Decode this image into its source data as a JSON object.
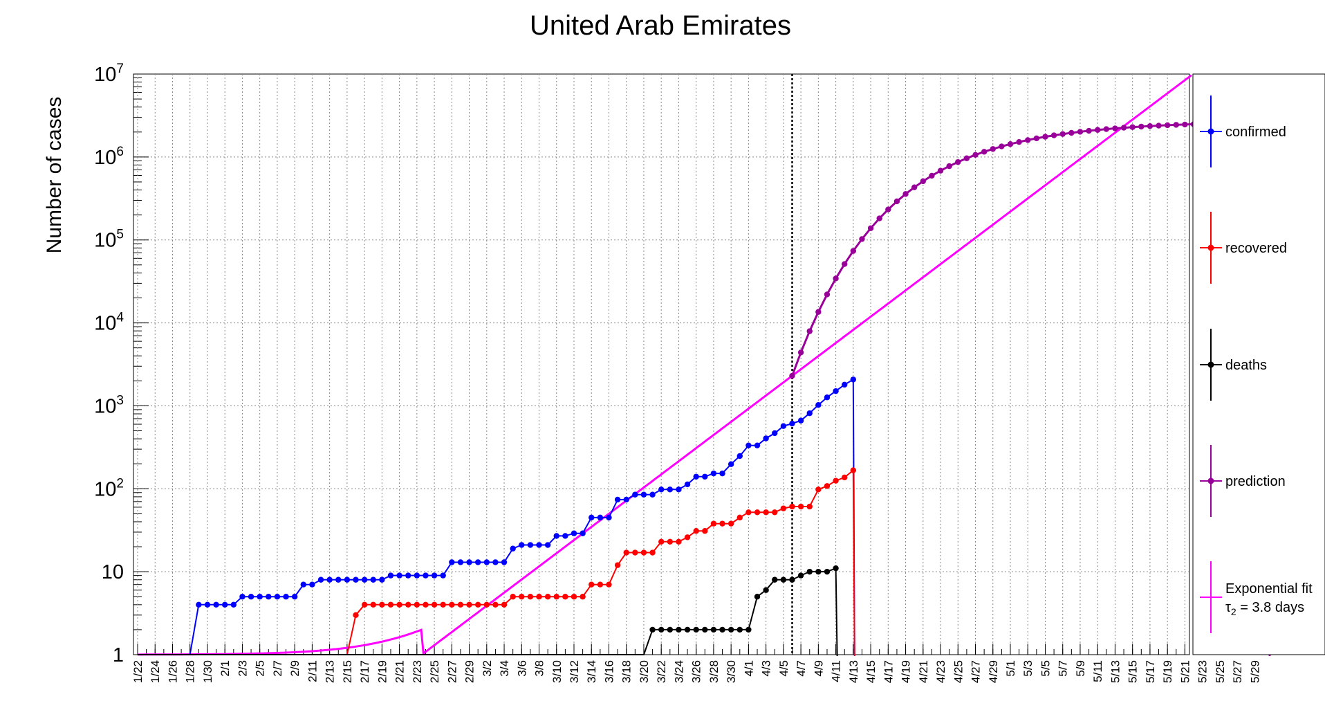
{
  "chart_data": {
    "type": "line",
    "title": "United Arab Emirates",
    "ylabel": "Number of cases",
    "xlabel": "",
    "yscale": "log",
    "ylim": [
      1,
      10000000
    ],
    "grid": true,
    "legend_position": "right",
    "y_tick_labels": [
      {
        "value": 1,
        "label": "1",
        "exp": ""
      },
      {
        "value": 10,
        "label": "10",
        "exp": ""
      },
      {
        "value": 100,
        "label": "10",
        "exp": "2"
      },
      {
        "value": 1000,
        "label": "10",
        "exp": "3"
      },
      {
        "value": 10000,
        "label": "10",
        "exp": "4"
      },
      {
        "value": 100000,
        "label": "10",
        "exp": "5"
      },
      {
        "value": 1000000,
        "label": "10",
        "exp": "6"
      },
      {
        "value": 10000000,
        "label": "10",
        "exp": "7"
      }
    ],
    "x_tick_labels": [
      "1/22",
      "1/24",
      "1/26",
      "1/28",
      "1/30",
      "2/1",
      "2/3",
      "2/5",
      "2/7",
      "2/9",
      "2/11",
      "2/13",
      "2/15",
      "2/17",
      "2/19",
      "2/21",
      "2/23",
      "2/25",
      "2/27",
      "2/29",
      "3/2",
      "3/4",
      "3/6",
      "3/8",
      "3/10",
      "3/12",
      "3/14",
      "3/16",
      "3/18",
      "3/20",
      "3/22",
      "3/24",
      "3/26",
      "3/28",
      "3/30",
      "4/1",
      "4/3",
      "4/5",
      "4/7",
      "4/9",
      "4/11",
      "4/13",
      "4/15",
      "4/17",
      "4/19",
      "4/21",
      "4/23",
      "4/25",
      "4/27",
      "4/29",
      "5/1",
      "5/3",
      "5/5",
      "5/7",
      "5/9",
      "5/11",
      "5/13",
      "5/15",
      "5/17",
      "5/19",
      "5/21",
      "5/23",
      "5/25",
      "5/27",
      "5/29"
    ],
    "day_range": [
      "1/22",
      "5/31"
    ],
    "marker_line_date": "4/6",
    "series": [
      {
        "name": "confirmed",
        "color": "#0000ff",
        "start_date": "1/22",
        "values": [
          0,
          0,
          0,
          0,
          0,
          0,
          0,
          4,
          4,
          4,
          4,
          4,
          5,
          5,
          5,
          5,
          5,
          5,
          5,
          7,
          7,
          8,
          8,
          8,
          8,
          8,
          8,
          8,
          8,
          9,
          9,
          9,
          9,
          9,
          9,
          9,
          13,
          13,
          13,
          13,
          13,
          13,
          13,
          19,
          21,
          21,
          21,
          21,
          27,
          27,
          29,
          29,
          45,
          45,
          45,
          74,
          74,
          85,
          85,
          85,
          98,
          98,
          98,
          113,
          140,
          140,
          153,
          153,
          198,
          248,
          333,
          333,
          405,
          468,
          570,
          611,
          664,
          814,
          1024,
          1264,
          1505,
          1799,
          2076
        ]
      },
      {
        "name": "recovered",
        "color": "#ff0000",
        "start_date": "1/22",
        "values": [
          0,
          0,
          0,
          0,
          0,
          0,
          0,
          0,
          0,
          0,
          0,
          0,
          0,
          0,
          0,
          0,
          0,
          0,
          0,
          0,
          0,
          0,
          0,
          0,
          0,
          3,
          4,
          4,
          4,
          4,
          4,
          4,
          4,
          4,
          4,
          4,
          4,
          4,
          4,
          4,
          4,
          4,
          4,
          5,
          5,
          5,
          5,
          5,
          5,
          5,
          5,
          5,
          7,
          7,
          7,
          12,
          17,
          17,
          17,
          17,
          23,
          23,
          23,
          26,
          31,
          31,
          38,
          38,
          38,
          45,
          52,
          52,
          52,
          52,
          58,
          61,
          61,
          61,
          98,
          108,
          125,
          137,
          167
        ]
      },
      {
        "name": "deaths",
        "color": "#000000",
        "start_date": "1/22",
        "values": [
          0,
          0,
          0,
          0,
          0,
          0,
          0,
          0,
          0,
          0,
          0,
          0,
          0,
          0,
          0,
          0,
          0,
          0,
          0,
          0,
          0,
          0,
          0,
          0,
          0,
          0,
          0,
          0,
          0,
          0,
          0,
          0,
          0,
          0,
          0,
          0,
          0,
          0,
          0,
          0,
          0,
          0,
          0,
          0,
          0,
          0,
          0,
          0,
          0,
          0,
          0,
          0,
          0,
          0,
          0,
          0,
          0,
          0,
          0,
          2,
          2,
          2,
          2,
          2,
          2,
          2,
          2,
          2,
          2,
          2,
          2,
          5,
          6,
          8,
          8,
          8,
          9,
          10,
          10,
          10,
          11
        ]
      },
      {
        "name": "prediction",
        "color": "#990099",
        "start_date": "4/6",
        "end_date": "5/30",
        "start_value": 2300,
        "end_value": 2600000,
        "curvature": 5.2
      },
      {
        "name": "Exponential fit",
        "name_line2": "τ",
        "name_line2_sub": "2",
        "name_line2_rest": " = 3.8 days",
        "color": "#ff00ff",
        "doubling_time_days": 3.8,
        "start_date": "1/22",
        "value_at_4_6": 2300
      }
    ]
  }
}
